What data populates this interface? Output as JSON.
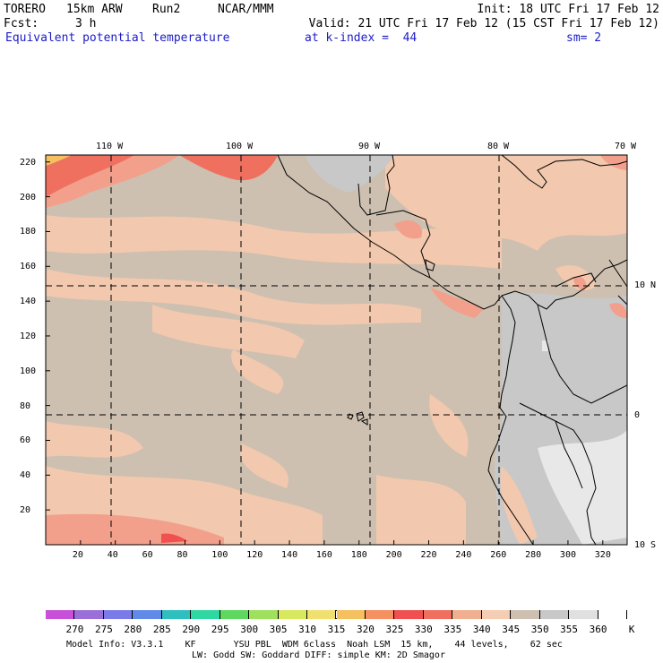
{
  "header": {
    "model": "TORERO",
    "resolution": "15km ARW",
    "run": "Run2",
    "org": "NCAR/MMM",
    "init": "Init: 18 UTC Fri 17 Feb 12",
    "fcst_label": "Fcst:",
    "fcst_value": "3 h",
    "valid": "Valid: 21 UTC Fri 17 Feb 12 (15 CST Fri 17 Feb 12)",
    "field": "Equivalent potential temperature",
    "level": "at k-index =  44",
    "smoothing": "sm= 2"
  },
  "map": {
    "top_lon_labels": [
      "110 W",
      "100 W",
      "90 W",
      "80 W",
      "70 W"
    ],
    "right_lat_labels": [
      "10 N",
      "0",
      "10 S"
    ],
    "left_axis_ticks": [
      "220",
      "200",
      "180",
      "160",
      "140",
      "120",
      "100",
      "80",
      "60",
      "40",
      "20"
    ],
    "bottom_axis_ticks": [
      "20",
      "40",
      "60",
      "80",
      "100",
      "120",
      "140",
      "160",
      "180",
      "200",
      "220",
      "240",
      "260",
      "280",
      "300",
      "320"
    ],
    "x_range": [
      0,
      334
    ],
    "y_range": [
      0,
      224
    ],
    "units": "K"
  },
  "colorbar": {
    "labels": [
      "270",
      "275",
      "280",
      "285",
      "290",
      "295",
      "300",
      "305",
      "310",
      "315",
      "320",
      "325",
      "330",
      "335",
      "340",
      "345",
      "350",
      "355",
      "360",
      "K"
    ],
    "colors": [
      "#c84fd8",
      "#9b6fd8",
      "#7a7ae8",
      "#5f8ae8",
      "#2fbfbf",
      "#2fd8a0",
      "#5fd85f",
      "#9fe05f",
      "#d8e85f",
      "#f0e070",
      "#f5c060",
      "#f59060",
      "#f05050",
      "#f07060",
      "#f0b090",
      "#f5cdb5",
      "#cdc0b0",
      "#c8c8c8",
      "#e0e0e0",
      "#ffffff"
    ]
  },
  "footer": {
    "line1": "Model Info: V3.3.1    KF       YSU PBL  WDM 6class  Noah LSM  15 km,    44 levels,    62 sec",
    "line2": "LW: Godd SW: Goddard DIFF: simple KM: 2D Smagor"
  }
}
